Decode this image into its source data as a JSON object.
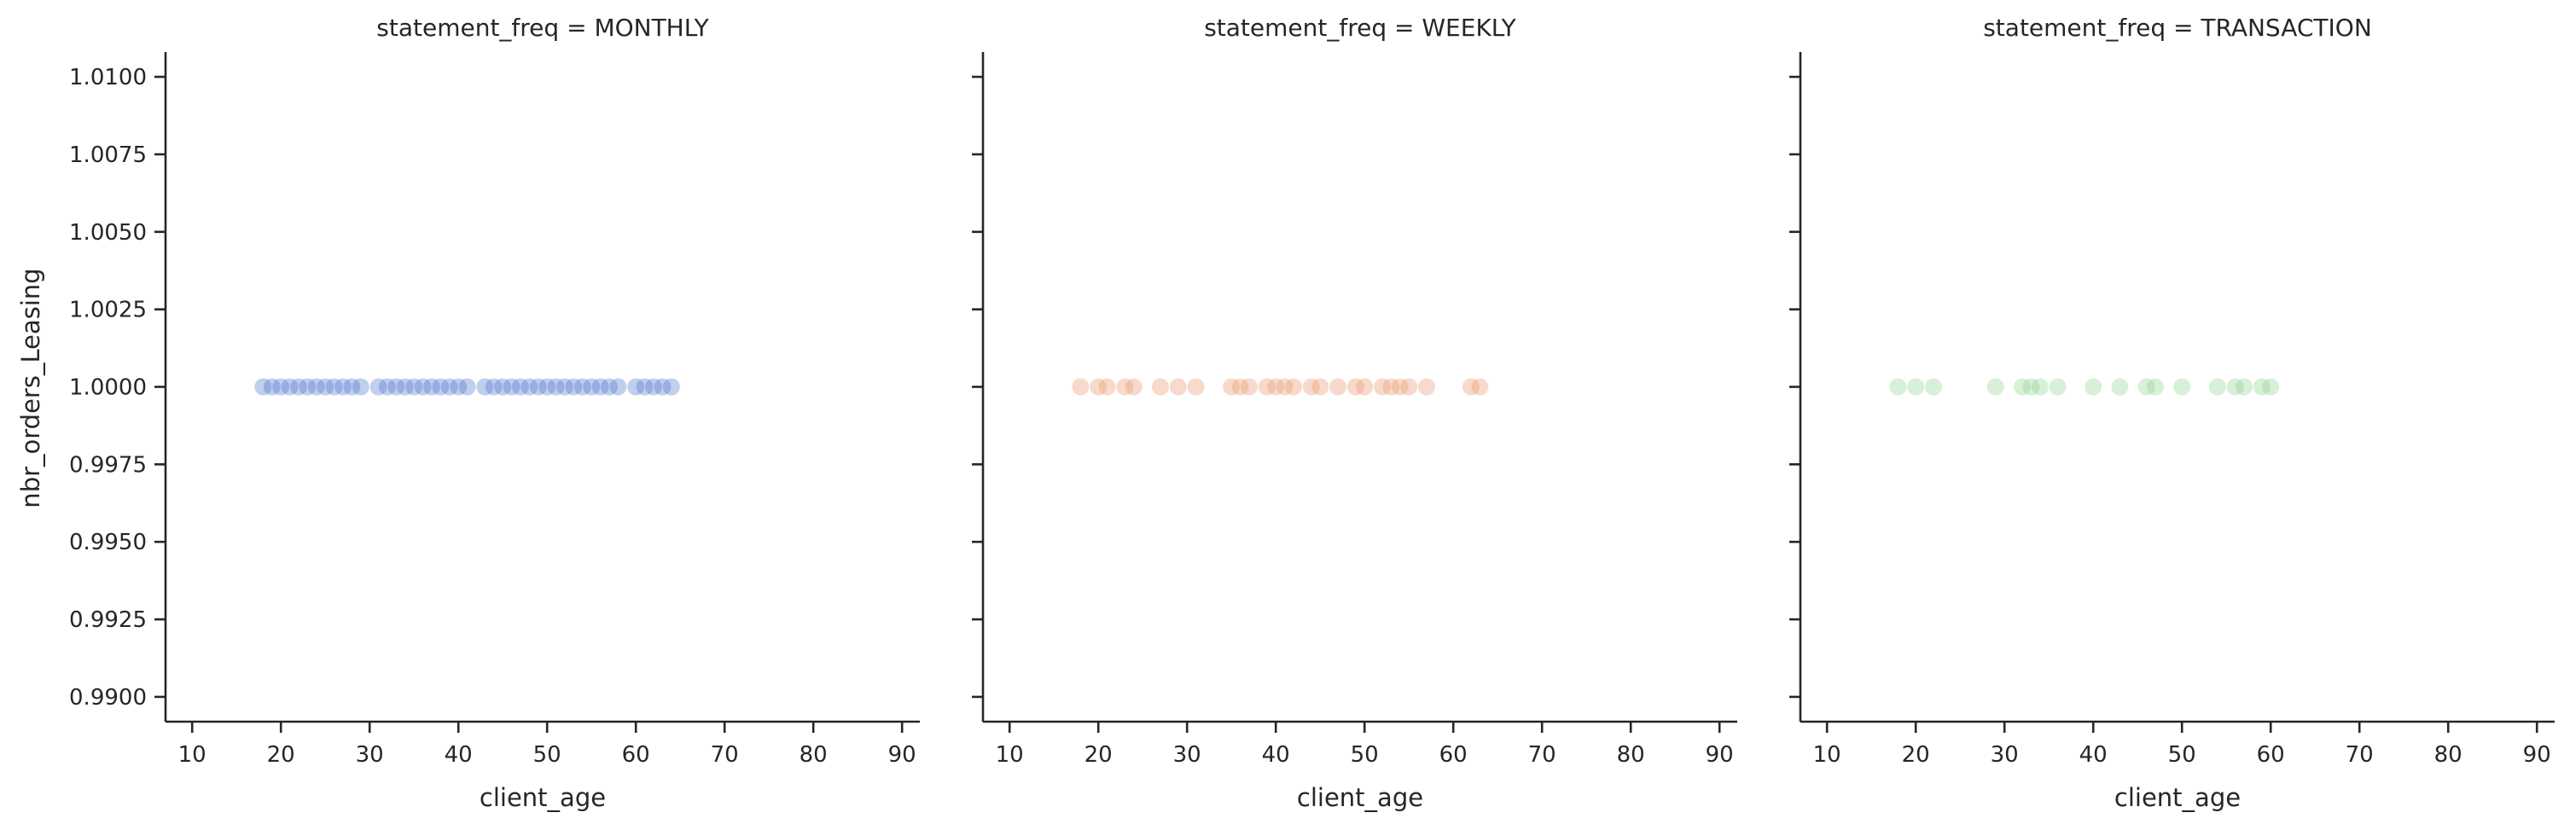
{
  "chart_data": {
    "type": "scatter",
    "facet_variable": "statement_freq",
    "xlabel": "client_age",
    "ylabel": "nbr_orders_Leasing",
    "xlim": [
      7,
      92
    ],
    "ylim": [
      0.9892,
      1.0108
    ],
    "xticks": [
      10,
      20,
      30,
      40,
      50,
      60,
      70,
      80,
      90
    ],
    "yticks": [
      0.99,
      0.9925,
      0.995,
      0.9975,
      1.0,
      1.0025,
      1.005,
      1.0075,
      1.01
    ],
    "ytick_labels": [
      "0.9900",
      "0.9925",
      "0.9950",
      "0.9975",
      "1.0000",
      "1.0025",
      "1.0050",
      "1.0075",
      "1.0100"
    ],
    "grid": false,
    "panels": [
      {
        "title": "statement_freq = MONTHLY",
        "color": "#4c72cf",
        "points": [
          {
            "x": 18,
            "y": 1
          },
          {
            "x": 19,
            "y": 1
          },
          {
            "x": 20,
            "y": 1
          },
          {
            "x": 21,
            "y": 1
          },
          {
            "x": 22,
            "y": 1
          },
          {
            "x": 23,
            "y": 1
          },
          {
            "x": 24,
            "y": 1
          },
          {
            "x": 25,
            "y": 1
          },
          {
            "x": 26,
            "y": 1
          },
          {
            "x": 27,
            "y": 1
          },
          {
            "x": 28,
            "y": 1
          },
          {
            "x": 29,
            "y": 1
          },
          {
            "x": 31,
            "y": 1
          },
          {
            "x": 32,
            "y": 1
          },
          {
            "x": 33,
            "y": 1
          },
          {
            "x": 34,
            "y": 1
          },
          {
            "x": 35,
            "y": 1
          },
          {
            "x": 36,
            "y": 1
          },
          {
            "x": 37,
            "y": 1
          },
          {
            "x": 38,
            "y": 1
          },
          {
            "x": 39,
            "y": 1
          },
          {
            "x": 40,
            "y": 1
          },
          {
            "x": 41,
            "y": 1
          },
          {
            "x": 43,
            "y": 1
          },
          {
            "x": 44,
            "y": 1
          },
          {
            "x": 45,
            "y": 1
          },
          {
            "x": 46,
            "y": 1
          },
          {
            "x": 47,
            "y": 1
          },
          {
            "x": 48,
            "y": 1
          },
          {
            "x": 49,
            "y": 1
          },
          {
            "x": 50,
            "y": 1
          },
          {
            "x": 51,
            "y": 1
          },
          {
            "x": 52,
            "y": 1
          },
          {
            "x": 53,
            "y": 1
          },
          {
            "x": 54,
            "y": 1
          },
          {
            "x": 55,
            "y": 1
          },
          {
            "x": 56,
            "y": 1
          },
          {
            "x": 57,
            "y": 1
          },
          {
            "x": 58,
            "y": 1
          },
          {
            "x": 60,
            "y": 1
          },
          {
            "x": 61,
            "y": 1
          },
          {
            "x": 62,
            "y": 1
          },
          {
            "x": 63,
            "y": 1
          },
          {
            "x": 64,
            "y": 1
          }
        ]
      },
      {
        "title": "statement_freq = WEEKLY",
        "color": "#e8956a",
        "points": [
          {
            "x": 18,
            "y": 1
          },
          {
            "x": 20,
            "y": 1
          },
          {
            "x": 21,
            "y": 1
          },
          {
            "x": 23,
            "y": 1
          },
          {
            "x": 24,
            "y": 1
          },
          {
            "x": 27,
            "y": 1
          },
          {
            "x": 29,
            "y": 1
          },
          {
            "x": 31,
            "y": 1
          },
          {
            "x": 35,
            "y": 1
          },
          {
            "x": 36,
            "y": 1
          },
          {
            "x": 37,
            "y": 1
          },
          {
            "x": 39,
            "y": 1
          },
          {
            "x": 40,
            "y": 1
          },
          {
            "x": 41,
            "y": 1
          },
          {
            "x": 42,
            "y": 1
          },
          {
            "x": 44,
            "y": 1
          },
          {
            "x": 45,
            "y": 1
          },
          {
            "x": 47,
            "y": 1
          },
          {
            "x": 49,
            "y": 1
          },
          {
            "x": 50,
            "y": 1
          },
          {
            "x": 52,
            "y": 1
          },
          {
            "x": 53,
            "y": 1
          },
          {
            "x": 54,
            "y": 1
          },
          {
            "x": 55,
            "y": 1
          },
          {
            "x": 57,
            "y": 1
          },
          {
            "x": 62,
            "y": 1
          },
          {
            "x": 63,
            "y": 1
          }
        ]
      },
      {
        "title": "statement_freq = TRANSACTION",
        "color": "#8fd18f",
        "points": [
          {
            "x": 18,
            "y": 1
          },
          {
            "x": 20,
            "y": 1
          },
          {
            "x": 22,
            "y": 1
          },
          {
            "x": 29,
            "y": 1
          },
          {
            "x": 32,
            "y": 1
          },
          {
            "x": 33,
            "y": 1
          },
          {
            "x": 34,
            "y": 1
          },
          {
            "x": 36,
            "y": 1
          },
          {
            "x": 40,
            "y": 1
          },
          {
            "x": 43,
            "y": 1
          },
          {
            "x": 46,
            "y": 1
          },
          {
            "x": 47,
            "y": 1
          },
          {
            "x": 50,
            "y": 1
          },
          {
            "x": 54,
            "y": 1
          },
          {
            "x": 56,
            "y": 1
          },
          {
            "x": 57,
            "y": 1
          },
          {
            "x": 59,
            "y": 1
          },
          {
            "x": 60,
            "y": 1
          }
        ]
      }
    ]
  }
}
